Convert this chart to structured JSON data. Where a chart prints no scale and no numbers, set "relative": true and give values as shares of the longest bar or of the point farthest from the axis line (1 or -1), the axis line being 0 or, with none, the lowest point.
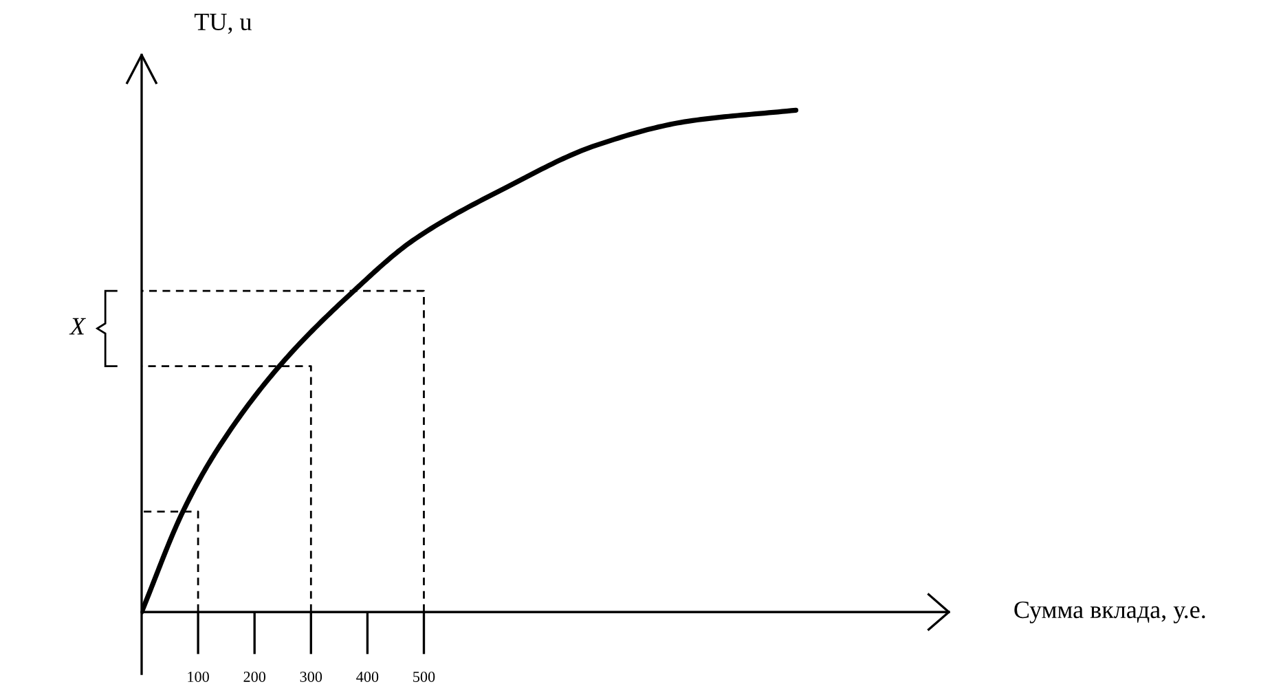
{
  "chart_data": {
    "type": "line",
    "relative": true,
    "xlabel": "Сумма вклада, у.е.",
    "ylabel": "TU, u",
    "xlim": [
      0,
      1430
    ],
    "xticks": [
      100,
      200,
      300,
      400,
      500
    ],
    "series": [
      {
        "color": "#000000",
        "line_style": "solid",
        "x": [
          0,
          73,
          132,
          244,
          376,
          480,
          644,
          805,
          968,
          1159
        ],
        "values": [
          0,
          0.2,
          0.32,
          0.49,
          0.64,
          0.74,
          0.845,
          0.93,
          0.978,
          1.0
        ]
      },
      {
        "color": "#000000",
        "line_style": "dashed",
        "x": [
          100,
          100,
          0
        ],
        "values": [
          0,
          0.2,
          0.2
        ]
      },
      {
        "color": "#000000",
        "line_style": "dashed",
        "x": [
          300,
          300,
          0
        ],
        "values": [
          0,
          0.49,
          0.49
        ]
      },
      {
        "color": "#000000",
        "line_style": "dashed",
        "x": [
          500,
          500,
          0
        ],
        "values": [
          0,
          0.64,
          0.64
        ]
      }
    ],
    "annotations": [
      "X"
    ]
  }
}
